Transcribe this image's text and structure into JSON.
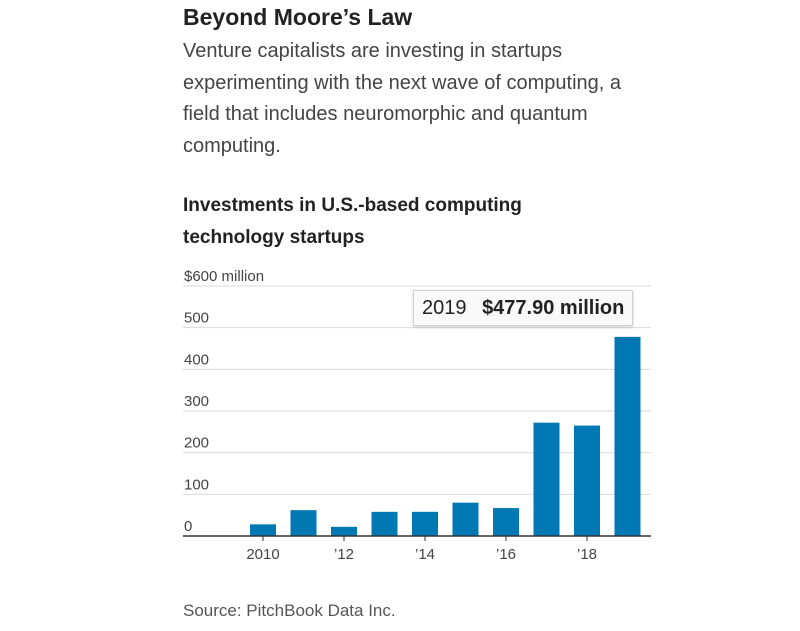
{
  "headline": "Beyond Moore’s Law",
  "dek": "Venture capitalists are investing in startups experimenting with the next wave of computing, a field that includes neuromorphic and quantum computing.",
  "source": "Source: PitchBook Data Inc.",
  "tooltip": {
    "label": "2019",
    "value": "$477.90 million"
  },
  "colors": {
    "bar": "#0078b4",
    "grid": "#d9d9d9",
    "axis": "#333333",
    "text": "#222222"
  },
  "chart_data": {
    "type": "bar",
    "title": "Investments in U.S.-based computing technology startups",
    "xlabel": "",
    "ylabel": "",
    "x": [
      2010,
      2011,
      2012,
      2013,
      2014,
      2015,
      2016,
      2017,
      2018,
      2019
    ],
    "values": [
      28,
      62,
      22,
      58,
      58,
      80,
      67,
      272,
      265,
      477.9
    ],
    "ylim": [
      0,
      600
    ],
    "yticks": [
      0,
      100,
      200,
      300,
      400,
      500,
      600
    ],
    "ytick_labels": [
      "0",
      "100",
      "200",
      "300",
      "400",
      "500",
      "$600 million"
    ],
    "xtick_labels": [
      {
        "x": 2010,
        "label": "2010"
      },
      {
        "x": 2012,
        "label": "’12"
      },
      {
        "x": 2014,
        "label": "’14"
      },
      {
        "x": 2016,
        "label": "’16"
      },
      {
        "x": 2018,
        "label": "’18"
      }
    ],
    "grid": true,
    "legend": "none"
  }
}
